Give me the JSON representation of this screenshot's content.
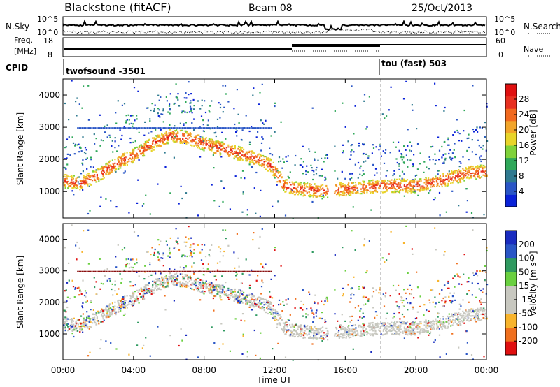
{
  "header": {
    "station": "Blackstone (fitACF)",
    "beam": "Beam 08",
    "date": "25/Oct/2013"
  },
  "status_panel": {
    "nsky_label": "N.Sky",
    "nsky_ticks": [
      "10^5",
      "10^0"
    ],
    "nsearch_label": "N.Search",
    "freq_label_1": "Freq.",
    "freq_label_2": "[MHz]",
    "freq_ticks": [
      "18",
      "8"
    ],
    "nave_label": "Nave",
    "nave_ticks": [
      "60",
      "0"
    ],
    "cpid_label": "CPID",
    "cpid_1": "twofsound -3501",
    "cpid_2": "tou (fast) 503"
  },
  "chart_data": [
    {
      "type": "heatmap",
      "title": "",
      "xlabel": "Time UT",
      "ylabel": "Slant Range [km]",
      "xlim": [
        0,
        24
      ],
      "ylim": [
        180,
        4500
      ],
      "x_ticks": [
        "00:00",
        "04:00",
        "08:00",
        "12:00",
        "16:00",
        "20:00",
        "00:00"
      ],
      "y_ticks": [
        "1000",
        "2000",
        "3000",
        "4000"
      ],
      "colorbar": {
        "label": "Power [dB]",
        "ticks": [
          "28",
          "24",
          "20",
          "16",
          "12",
          "8",
          "4"
        ],
        "range": [
          0,
          30
        ],
        "colors": [
          "#0a22d8",
          "#2a56c6",
          "#2f7a90",
          "#2fa85a",
          "#7fd23a",
          "#e8d42a",
          "#f2a52a",
          "#f26a1f",
          "#e83020",
          "#e01010"
        ]
      },
      "echo_band_center_km": [
        [
          0.0,
          1350
        ],
        [
          1.0,
          1280
        ],
        [
          2.0,
          1550
        ],
        [
          3.0,
          1900
        ],
        [
          4.0,
          2150
        ],
        [
          5.0,
          2500
        ],
        [
          6.0,
          2750
        ],
        [
          7.0,
          2700
        ],
        [
          8.0,
          2500
        ],
        [
          9.0,
          2350
        ],
        [
          10.0,
          2200
        ],
        [
          11.0,
          2050
        ],
        [
          11.8,
          1800
        ],
        [
          12.5,
          1200
        ],
        [
          13.5,
          1100
        ],
        [
          14.5,
          1050
        ],
        [
          15.0,
          1050
        ],
        [
          15.3,
          1100
        ],
        [
          16.0,
          1100
        ],
        [
          17.0,
          1150
        ],
        [
          18.0,
          1200
        ],
        [
          19.0,
          1200
        ],
        [
          20.0,
          1200
        ],
        [
          21.0,
          1300
        ],
        [
          22.0,
          1450
        ],
        [
          23.0,
          1600
        ],
        [
          24.0,
          1650
        ]
      ]
    },
    {
      "type": "heatmap",
      "title": "",
      "xlabel": "Time UT",
      "ylabel": "Slant Range [km]",
      "xlim": [
        0,
        24
      ],
      "ylim": [
        180,
        4500
      ],
      "x_ticks": [
        "00:00",
        "04:00",
        "08:00",
        "12:00",
        "16:00",
        "20:00",
        "00:00"
      ],
      "y_ticks": [
        "1000",
        "2000",
        "3000",
        "4000"
      ],
      "colorbar": {
        "label": "Velocity [m s⁻¹]",
        "ticks": [
          "200",
          "100",
          "50",
          "15",
          "-15",
          "-50",
          "-100",
          "-200"
        ],
        "range": [
          -250,
          250
        ],
        "colors": [
          "#e01010",
          "#f0701e",
          "#f8b42c",
          "#c8c8c0",
          "#c8c8c0",
          "#6ad040",
          "#2f9a60",
          "#2a56c6",
          "#1a2cc0"
        ]
      }
    }
  ]
}
